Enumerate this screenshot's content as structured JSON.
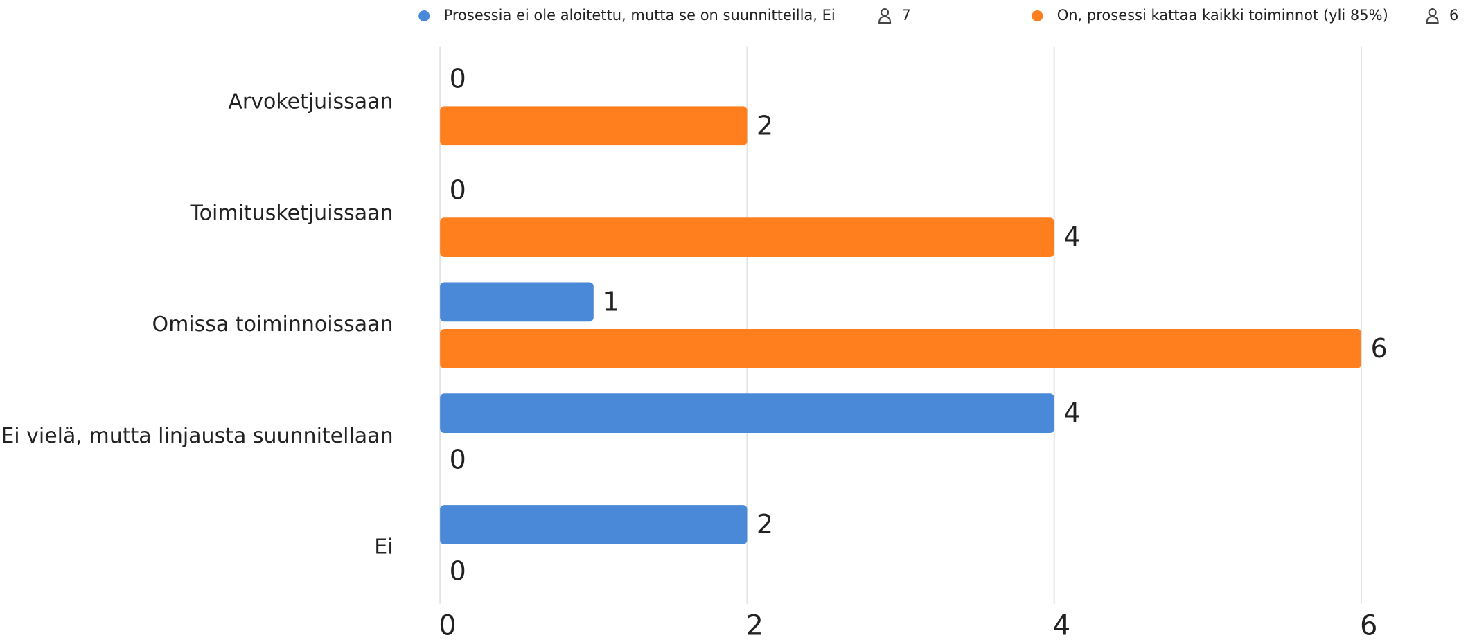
{
  "chart_data": {
    "type": "hbar",
    "categories": [
      "Arvoketjuissaan",
      "Toimitusketjuissaan",
      "Omissa toiminnoissaan",
      "Ei vielä, mutta linjausta suunnitellaan",
      "Ei"
    ],
    "series": [
      {
        "name": "Prosessia ei ole aloitettu, mutta se on suunnitteilla, Ei",
        "color": "#4a89d8",
        "count": 7,
        "values": [
          0,
          0,
          1,
          4,
          2
        ]
      },
      {
        "name": "On, prosessi kattaa kaikki toiminnot (yli 85%)",
        "color": "#ff7f1e",
        "count": 6,
        "values": [
          2,
          4,
          6,
          0,
          0
        ]
      }
    ],
    "xlim": [
      0,
      6
    ],
    "xticks": [
      0,
      2,
      4,
      6
    ],
    "grid": true
  }
}
